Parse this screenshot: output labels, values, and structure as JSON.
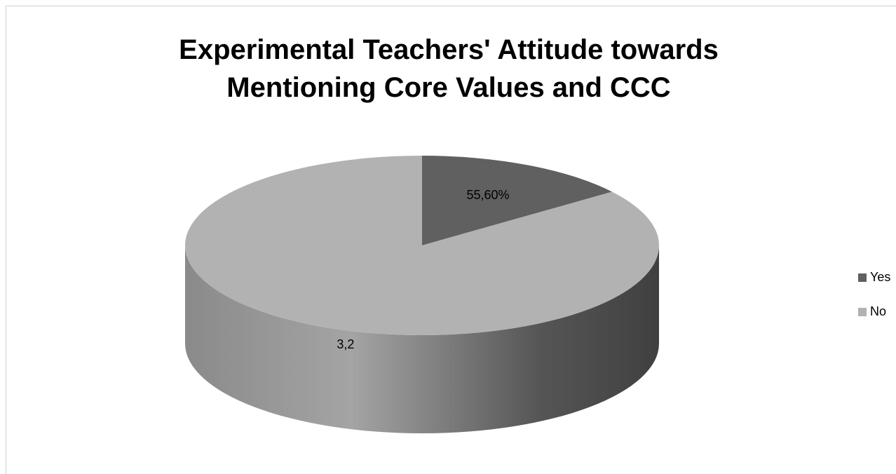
{
  "chart_data": {
    "type": "pie",
    "title": "Experimental Teachers' Attitude towards Mentioning Core Values and CCC",
    "categories": [
      "Yes",
      "No"
    ],
    "values": [
      0.556,
      3.2
    ],
    "value_labels": [
      "55,60%",
      "3,2"
    ],
    "colors": [
      "#606060",
      "#b2b2b2"
    ],
    "legend": "right"
  }
}
